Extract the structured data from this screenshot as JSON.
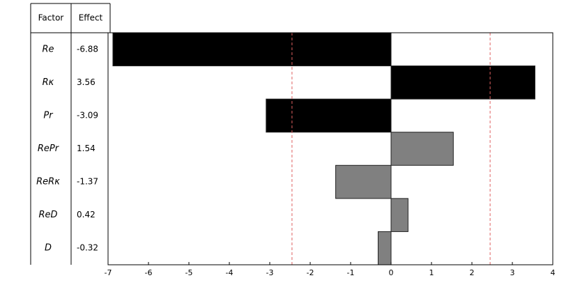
{
  "chart_data": {
    "type": "bar",
    "column_headers": [
      "Factor",
      "Effect"
    ],
    "categories": [
      "Re",
      "Rκ",
      "Pr",
      "RePr",
      "ReRκ",
      "ReD",
      "D"
    ],
    "values": [
      -6.88,
      3.56,
      -3.09,
      1.54,
      -1.37,
      0.42,
      -0.32
    ],
    "colors": [
      "#000000",
      "#000000",
      "#000000",
      "#808080",
      "#808080",
      "#808080",
      "#808080"
    ],
    "threshold": [
      -2.45,
      2.45
    ],
    "threshold_color": "#e06060",
    "xlim": [
      -7,
      4
    ],
    "xticks": [
      -7,
      -6,
      -5,
      -4,
      -3,
      -2,
      -1,
      0,
      1,
      2,
      3,
      4
    ],
    "grid": false
  }
}
